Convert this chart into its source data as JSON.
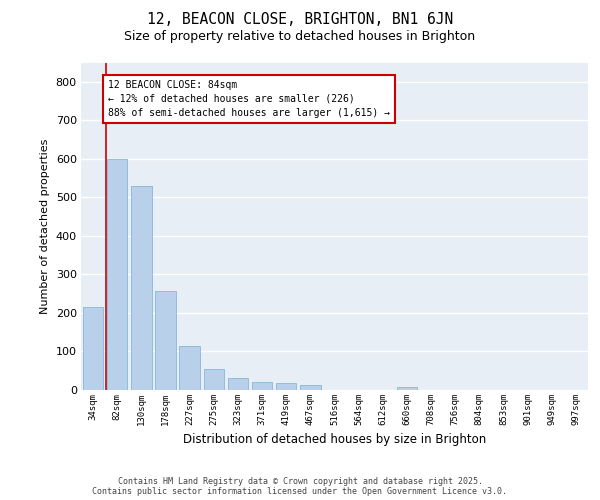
{
  "title_line1": "12, BEACON CLOSE, BRIGHTON, BN1 6JN",
  "title_line2": "Size of property relative to detached houses in Brighton",
  "xlabel": "Distribution of detached houses by size in Brighton",
  "ylabel": "Number of detached properties",
  "bar_values": [
    215,
    600,
    530,
    258,
    115,
    55,
    32,
    20,
    18,
    13,
    0,
    0,
    0,
    8,
    0,
    0,
    0,
    0,
    0,
    0,
    0
  ],
  "bar_labels": [
    "34sqm",
    "82sqm",
    "130sqm",
    "178sqm",
    "227sqm",
    "275sqm",
    "323sqm",
    "371sqm",
    "419sqm",
    "467sqm",
    "516sqm",
    "564sqm",
    "612sqm",
    "660sqm",
    "708sqm",
    "756sqm",
    "804sqm",
    "853sqm",
    "901sqm",
    "949sqm",
    "997sqm"
  ],
  "bar_color": "#b8d0ea",
  "bar_edge_color": "#7aafd4",
  "highlight_color": "#cc0000",
  "annotation_text": "12 BEACON CLOSE: 84sqm\n← 12% of detached houses are smaller (226)\n88% of semi-detached houses are larger (1,615) →",
  "annotation_box_color": "#cc0000",
  "ylim": [
    0,
    850
  ],
  "yticks": [
    0,
    100,
    200,
    300,
    400,
    500,
    600,
    700,
    800
  ],
  "background_color": "#e8eef5",
  "grid_color": "#ffffff",
  "footer_line1": "Contains HM Land Registry data © Crown copyright and database right 2025.",
  "footer_line2": "Contains public sector information licensed under the Open Government Licence v3.0."
}
